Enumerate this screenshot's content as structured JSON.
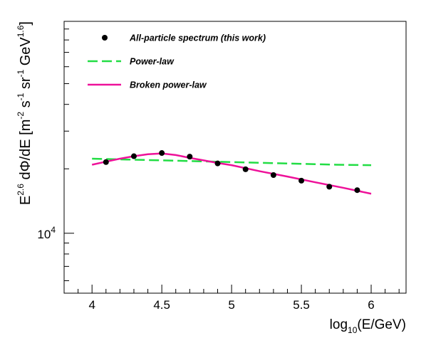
{
  "chart_data": {
    "type": "scatter",
    "xlabel": "log10(E/GeV)",
    "ylabel": "E^2.6 dΦ/dE [m^-2 s^-1 sr^-1 GeV^1.6]",
    "xlim": [
      3.8,
      6.25
    ],
    "ylim_log10": [
      3.72,
      4.99
    ],
    "y_scale": "log",
    "x_ticks": [
      {
        "v": 4.0,
        "label": "4"
      },
      {
        "v": 4.5,
        "label": "4.5"
      },
      {
        "v": 5.0,
        "label": "5"
      },
      {
        "v": 5.5,
        "label": "5.5"
      },
      {
        "v": 6.0,
        "label": "6"
      }
    ],
    "y_tick_labeled": {
      "base": "10",
      "exponent": "4",
      "log10": 4.0
    },
    "grid": false,
    "legend_position": "top-left",
    "series": [
      {
        "name": "All-particle spectrum (this work)",
        "kind": "points",
        "color": "#000000",
        "x": [
          4.1,
          4.3,
          4.5,
          4.7,
          4.9,
          5.1,
          5.3,
          5.5,
          5.7,
          5.9
        ],
        "y": [
          21500,
          22900,
          23700,
          22800,
          21200,
          19900,
          18700,
          17600,
          16500,
          15900
        ]
      },
      {
        "name": "Power-law",
        "kind": "line",
        "style": "dashed",
        "color": "#22dd44",
        "x": [
          4.0,
          4.25,
          4.5,
          4.75,
          5.0,
          5.25,
          5.5,
          5.75,
          6.0
        ],
        "y": [
          22300,
          22100,
          21900,
          21700,
          21500,
          21300,
          21100,
          20900,
          20800
        ]
      },
      {
        "name": "Broken power-law",
        "kind": "line",
        "style": "solid",
        "color": "#ee1199",
        "x": [
          4.0,
          4.1,
          4.2,
          4.3,
          4.4,
          4.5,
          4.6,
          4.7,
          4.8,
          4.9,
          5.0,
          5.2,
          5.4,
          5.6,
          5.8,
          6.0
        ],
        "y": [
          20900,
          21600,
          22300,
          22900,
          23400,
          23600,
          23200,
          22500,
          21900,
          21300,
          20800,
          19500,
          18400,
          17300,
          16300,
          15300
        ]
      }
    ]
  }
}
